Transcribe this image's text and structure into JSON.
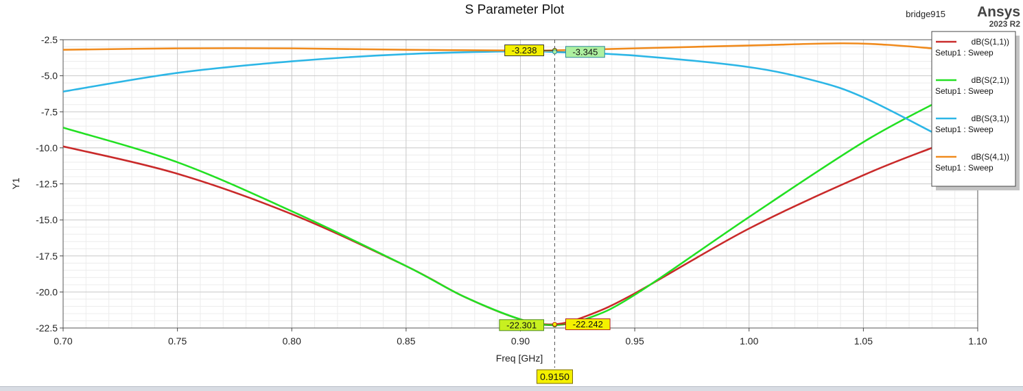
{
  "plot": {
    "title": "S Parameter Plot",
    "design_name": "bridge915",
    "brand": "Ansys",
    "version": "2023 R2"
  },
  "legend": {
    "placement": "top-right",
    "entries": [
      {
        "name": "dB(S(1,1))",
        "sub": "Setup1 : Sweep",
        "color": "#c92a2a"
      },
      {
        "name": "dB(S(2,1))",
        "sub": "Setup1 : Sweep",
        "color": "#22e022"
      },
      {
        "name": "dB(S(3,1))",
        "sub": "Setup1 : Sweep",
        "color": "#2cb6e6"
      },
      {
        "name": "dB(S(4,1))",
        "sub": "Setup1 : Sweep",
        "color": "#f08a1c"
      }
    ]
  },
  "markers": {
    "x_value": 0.915,
    "x_label": "0.9150",
    "labels": [
      {
        "text": "-3.238",
        "series": "dB(S(4,1))",
        "y": -3.238,
        "side": "left",
        "bg": "#f4f000",
        "border": "#333333"
      },
      {
        "text": "-3.345",
        "series": "dB(S(3,1))",
        "y": -3.345,
        "side": "right",
        "bg": "#aef0a0",
        "border": "#2a8a9a"
      },
      {
        "text": "-22.301",
        "series": "dB(S(2,1))",
        "y": -22.301,
        "side": "left",
        "bg": "#c8f020",
        "border": "#4a8a20"
      },
      {
        "text": "-22.242",
        "series": "dB(S(1,1))",
        "y": -22.242,
        "side": "right",
        "bg": "#f4f000",
        "border": "#b02020"
      }
    ]
  },
  "chart_data": {
    "type": "line",
    "title": "S Parameter Plot",
    "xlabel": "Freq [GHz]",
    "ylabel": "Y1",
    "xlim": [
      0.7,
      1.1
    ],
    "ylim": [
      -22.5,
      -2.5
    ],
    "x_ticks": [
      "0.70",
      "0.75",
      "0.80",
      "0.85",
      "0.90",
      "0.95",
      "1.00",
      "1.05",
      "1.10"
    ],
    "y_ticks": [
      "-2.5",
      "-5.0",
      "-7.5",
      "-10.0",
      "-12.5",
      "-15.0",
      "-17.5",
      "-20.0",
      "-22.5"
    ],
    "grid": true,
    "series": [
      {
        "name": "dB(S(1,1))",
        "color": "#c92a2a",
        "x": [
          0.7,
          0.75,
          0.8,
          0.85,
          0.875,
          0.9,
          0.915,
          0.93,
          0.95,
          1.0,
          1.05,
          1.08
        ],
        "y": [
          -9.9,
          -11.8,
          -14.6,
          -18.2,
          -20.3,
          -21.9,
          -22.24,
          -21.6,
          -20.1,
          -15.6,
          -11.9,
          -10.0
        ]
      },
      {
        "name": "dB(S(2,1))",
        "color": "#22e022",
        "x": [
          0.7,
          0.75,
          0.8,
          0.85,
          0.875,
          0.9,
          0.915,
          0.93,
          0.95,
          1.0,
          1.05,
          1.085
        ],
        "y": [
          -8.6,
          -11.0,
          -14.4,
          -18.2,
          -20.3,
          -21.9,
          -22.3,
          -21.8,
          -20.2,
          -14.8,
          -9.6,
          -6.6
        ]
      },
      {
        "name": "dB(S(3,1))",
        "color": "#2cb6e6",
        "x": [
          0.7,
          0.75,
          0.8,
          0.85,
          0.9,
          0.915,
          0.95,
          1.0,
          1.03,
          1.05,
          1.08
        ],
        "y": [
          -6.1,
          -4.8,
          -4.0,
          -3.5,
          -3.3,
          -3.35,
          -3.6,
          -4.4,
          -5.4,
          -6.5,
          -8.9
        ]
      },
      {
        "name": "dB(S(4,1))",
        "color": "#f08a1c",
        "x": [
          0.7,
          0.75,
          0.8,
          0.85,
          0.9,
          0.915,
          0.95,
          1.0,
          1.04,
          1.06,
          1.08,
          1.1
        ],
        "y": [
          -3.2,
          -3.1,
          -3.1,
          -3.2,
          -3.25,
          -3.24,
          -3.1,
          -2.9,
          -2.75,
          -2.85,
          -3.1,
          -3.4
        ]
      }
    ]
  }
}
